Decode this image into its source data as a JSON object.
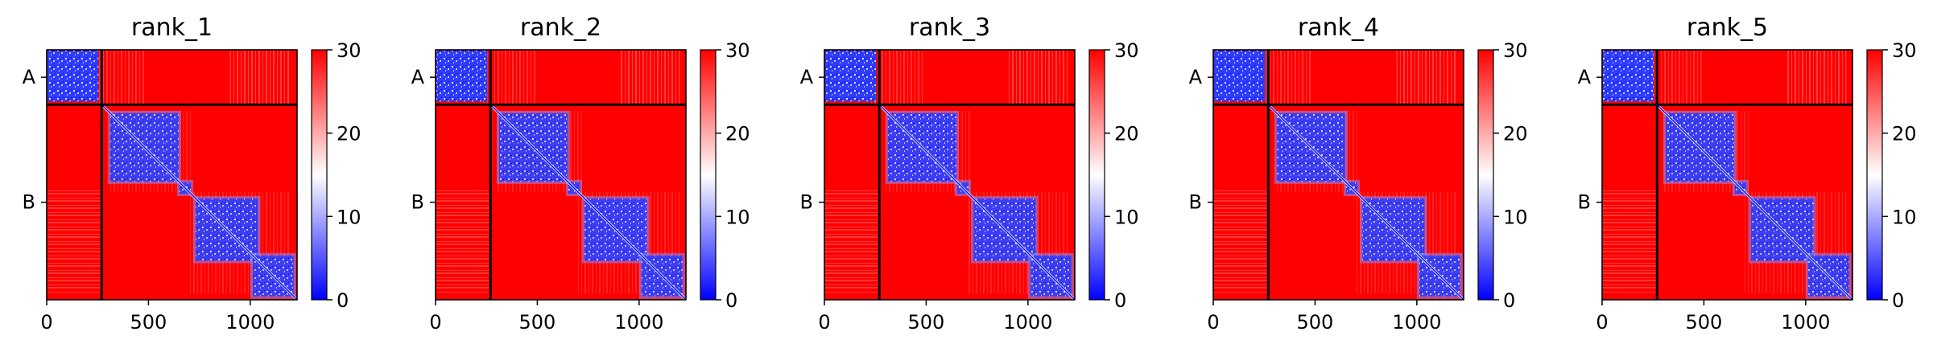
{
  "chart_data": [
    {
      "type": "heatmap",
      "title": "rank_1",
      "x_ticks": [
        0,
        500,
        1000
      ],
      "y_tick_labels": [
        "A",
        "B"
      ],
      "chain_boundary": 270,
      "length": 1230,
      "colorbar": {
        "min": 0,
        "max": 30,
        "ticks": [
          0,
          10,
          20,
          30
        ],
        "colors": [
          "#0000ff",
          "#ffffff",
          "#ff0000"
        ]
      }
    },
    {
      "type": "heatmap",
      "title": "rank_2",
      "x_ticks": [
        0,
        500,
        1000
      ],
      "y_tick_labels": [
        "A",
        "B"
      ],
      "chain_boundary": 270,
      "length": 1230,
      "colorbar": {
        "min": 0,
        "max": 30,
        "ticks": [
          0,
          10,
          20,
          30
        ],
        "colors": [
          "#0000ff",
          "#ffffff",
          "#ff0000"
        ]
      }
    },
    {
      "type": "heatmap",
      "title": "rank_3",
      "x_ticks": [
        0,
        500,
        1000
      ],
      "y_tick_labels": [
        "A",
        "B"
      ],
      "chain_boundary": 270,
      "length": 1230,
      "colorbar": {
        "min": 0,
        "max": 30,
        "ticks": [
          0,
          10,
          20,
          30
        ],
        "colors": [
          "#0000ff",
          "#ffffff",
          "#ff0000"
        ]
      }
    },
    {
      "type": "heatmap",
      "title": "rank_4",
      "x_ticks": [
        0,
        500,
        1000
      ],
      "y_tick_labels": [
        "A",
        "B"
      ],
      "chain_boundary": 270,
      "length": 1230,
      "colorbar": {
        "min": 0,
        "max": 30,
        "ticks": [
          0,
          10,
          20,
          30
        ],
        "colors": [
          "#0000ff",
          "#ffffff",
          "#ff0000"
        ]
      }
    },
    {
      "type": "heatmap",
      "title": "rank_5",
      "x_ticks": [
        0,
        500,
        1000
      ],
      "y_tick_labels": [
        "A",
        "B"
      ],
      "chain_boundary": 270,
      "length": 1230,
      "colorbar": {
        "min": 0,
        "max": 30,
        "ticks": [
          0,
          10,
          20,
          30
        ],
        "colors": [
          "#0000ff",
          "#ffffff",
          "#ff0000"
        ]
      }
    }
  ]
}
